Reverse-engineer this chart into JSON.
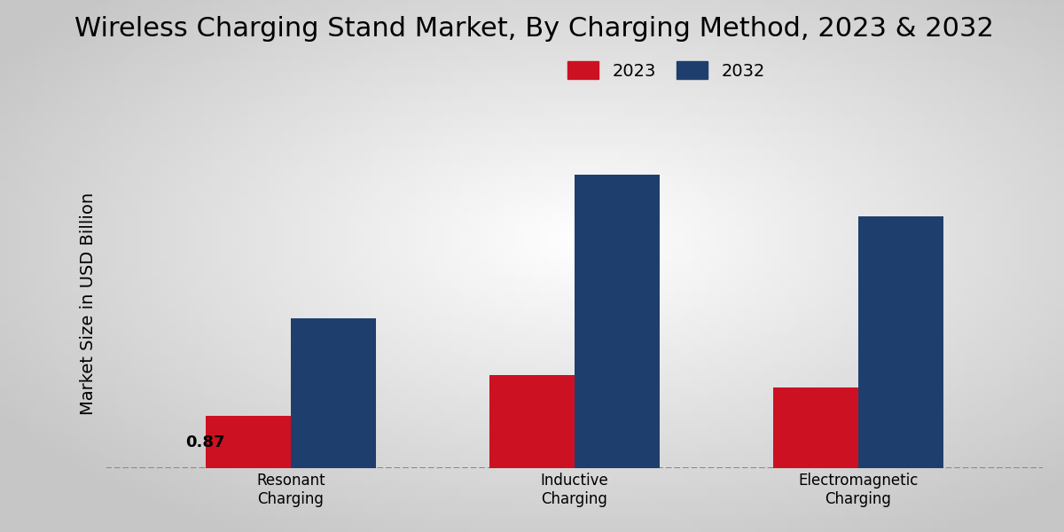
{
  "title": "Wireless Charging Stand Market, By Charging Method, 2023 & 2032",
  "ylabel": "Market Size in USD Billion",
  "categories": [
    "Resonant\nCharging",
    "Inductive\nCharging",
    "Electromagnetic\nCharging"
  ],
  "values_2023": [
    0.87,
    1.55,
    1.35
  ],
  "values_2032": [
    2.5,
    4.9,
    4.2
  ],
  "color_2023": "#cc1122",
  "color_2032": "#1e3f6e",
  "bar_width": 0.3,
  "annotation_val": "0.87",
  "legend_labels": [
    "2023",
    "2032"
  ],
  "bg_top_left": "#c8c8c8",
  "bg_center": "#f0f0f0",
  "bottom_bar_color": "#cc0000",
  "ylim": [
    0,
    5.5
  ],
  "title_fontsize": 22,
  "axis_label_fontsize": 14,
  "tick_fontsize": 12,
  "legend_fontsize": 14
}
